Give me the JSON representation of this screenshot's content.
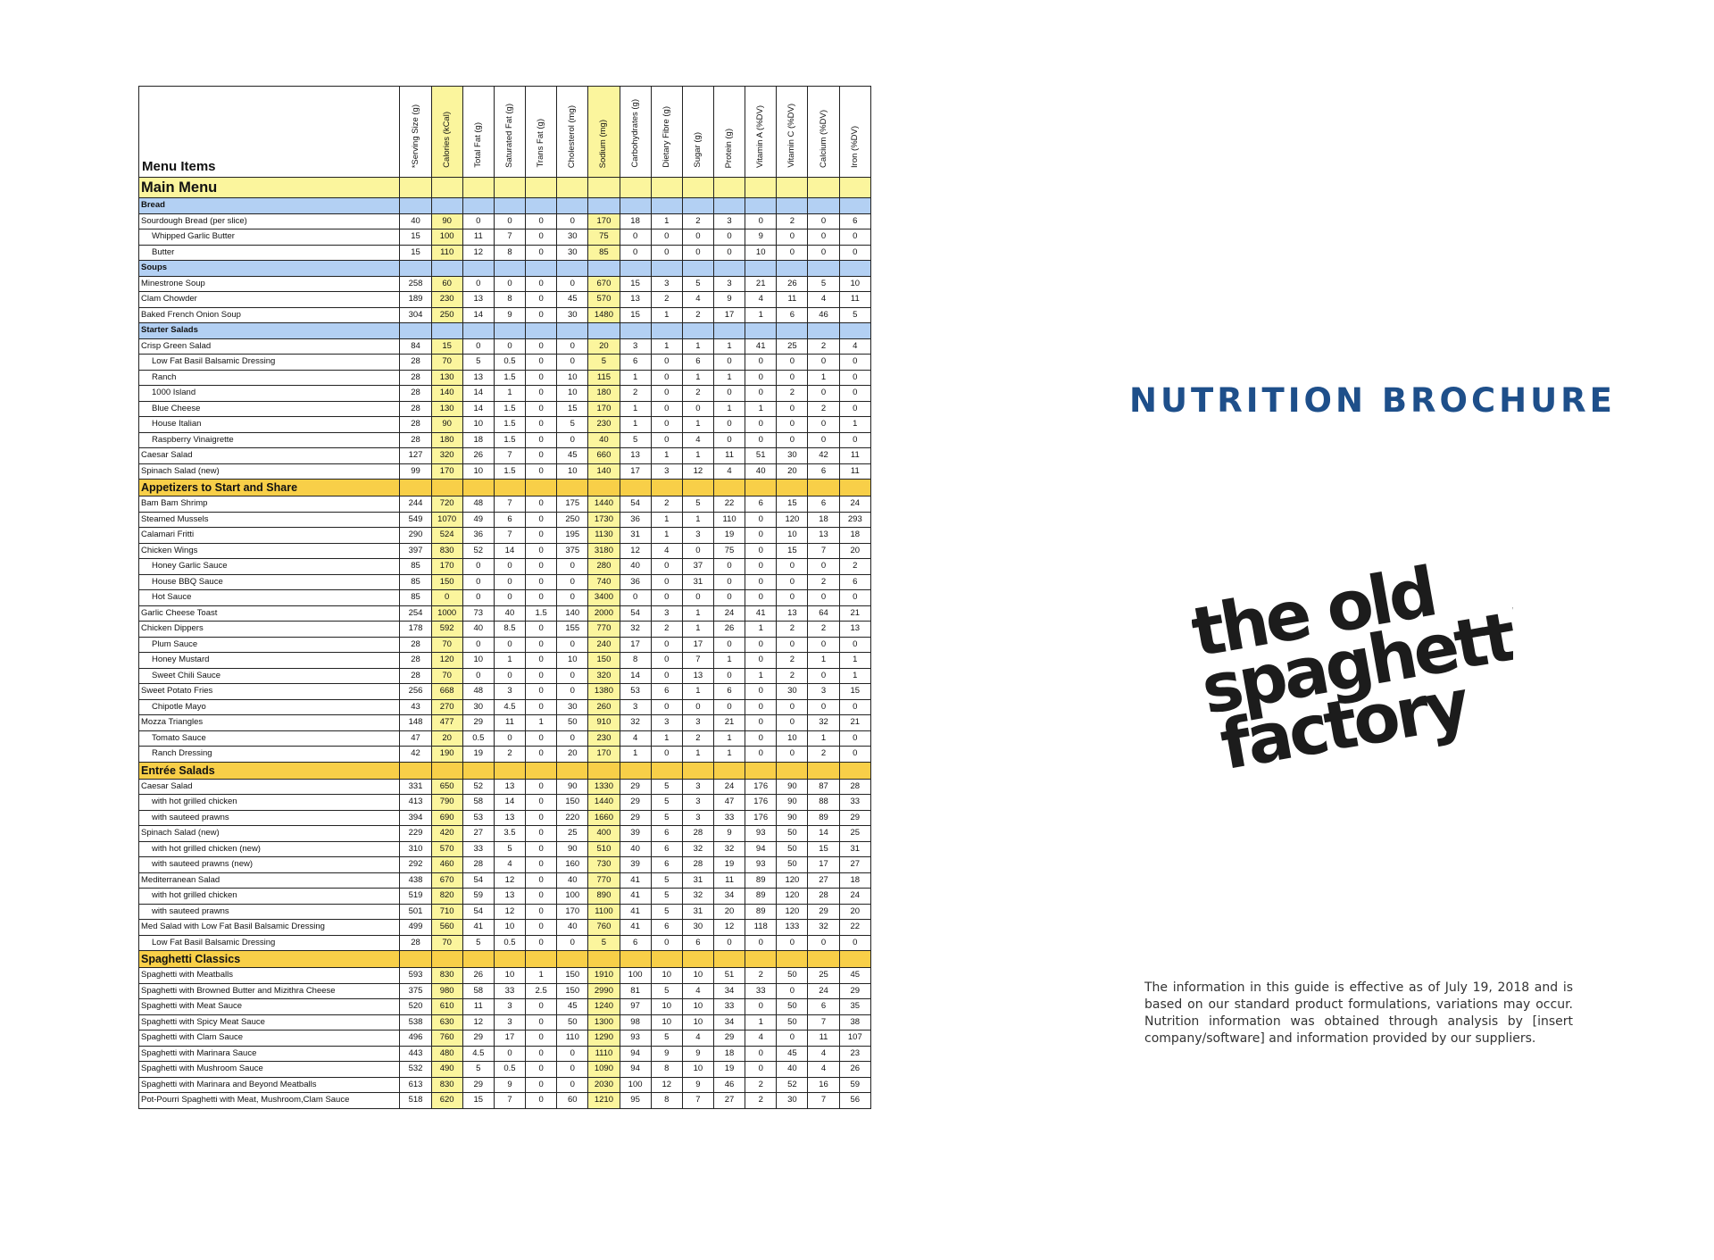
{
  "table": {
    "menu_items_header": "Menu Items",
    "columns": [
      "*Serving Size (g)",
      "Calories (kCal)",
      "Total Fat (g)",
      "Saturated Fat (g)",
      "Trans Fat (g)",
      "Cholesterol (mg)",
      "Sodium (mg)",
      "Carbohydrates (g)",
      "Dietary Fibre (g)",
      "Sugar (g)",
      "Protein (g)",
      "Vitamin A (%DV)",
      "Vitamin C (%DV)",
      "Calcium (%DV)",
      "Iron (%DV)"
    ],
    "highlight_columns": [
      1,
      6
    ],
    "rows": [
      {
        "kind": "main",
        "name": "Main Menu"
      },
      {
        "kind": "section",
        "name": "Bread"
      },
      {
        "name": "Sourdough Bread (per slice)",
        "v": [
          "40",
          "90",
          "0",
          "0",
          "0",
          "0",
          "170",
          "18",
          "1",
          "2",
          "3",
          "0",
          "2",
          "0",
          "6"
        ]
      },
      {
        "name": "Whipped Garlic Butter",
        "sub": true,
        "v": [
          "15",
          "100",
          "11",
          "7",
          "0",
          "30",
          "75",
          "0",
          "0",
          "0",
          "0",
          "9",
          "0",
          "0",
          "0"
        ]
      },
      {
        "name": "Butter",
        "sub": true,
        "v": [
          "15",
          "110",
          "12",
          "8",
          "0",
          "30",
          "85",
          "0",
          "0",
          "0",
          "0",
          "10",
          "0",
          "0",
          "0"
        ]
      },
      {
        "kind": "section",
        "name": "Soups"
      },
      {
        "name": "Minestrone Soup",
        "v": [
          "258",
          "60",
          "0",
          "0",
          "0",
          "0",
          "670",
          "15",
          "3",
          "5",
          "3",
          "21",
          "26",
          "5",
          "10"
        ]
      },
      {
        "name": "Clam Chowder",
        "v": [
          "189",
          "230",
          "13",
          "8",
          "0",
          "45",
          "570",
          "13",
          "2",
          "4",
          "9",
          "4",
          "11",
          "4",
          "11"
        ]
      },
      {
        "name": "Baked French Onion Soup",
        "v": [
          "304",
          "250",
          "14",
          "9",
          "0",
          "30",
          "1480",
          "15",
          "1",
          "2",
          "17",
          "1",
          "6",
          "46",
          "5"
        ]
      },
      {
        "kind": "section",
        "name": "Starter Salads"
      },
      {
        "name": "Crisp Green Salad",
        "v": [
          "84",
          "15",
          "0",
          "0",
          "0",
          "0",
          "20",
          "3",
          "1",
          "1",
          "1",
          "41",
          "25",
          "2",
          "4"
        ]
      },
      {
        "name": "Low Fat Basil Balsamic Dressing",
        "sub": true,
        "v": [
          "28",
          "70",
          "5",
          "0.5",
          "0",
          "0",
          "5",
          "6",
          "0",
          "6",
          "0",
          "0",
          "0",
          "0",
          "0"
        ]
      },
      {
        "name": "Ranch",
        "sub": true,
        "v": [
          "28",
          "130",
          "13",
          "1.5",
          "0",
          "10",
          "115",
          "1",
          "0",
          "1",
          "1",
          "0",
          "0",
          "1",
          "0"
        ]
      },
      {
        "name": "1000 Island",
        "sub": true,
        "v": [
          "28",
          "140",
          "14",
          "1",
          "0",
          "10",
          "180",
          "2",
          "0",
          "2",
          "0",
          "0",
          "2",
          "0",
          "0"
        ]
      },
      {
        "name": "Blue Cheese",
        "sub": true,
        "v": [
          "28",
          "130",
          "14",
          "1.5",
          "0",
          "15",
          "170",
          "1",
          "0",
          "0",
          "1",
          "1",
          "0",
          "2",
          "0"
        ]
      },
      {
        "name": "House Italian",
        "sub": true,
        "v": [
          "28",
          "90",
          "10",
          "1.5",
          "0",
          "5",
          "230",
          "1",
          "0",
          "1",
          "0",
          "0",
          "0",
          "0",
          "1"
        ]
      },
      {
        "name": "Raspberry Vinaigrette",
        "sub": true,
        "v": [
          "28",
          "180",
          "18",
          "1.5",
          "0",
          "0",
          "40",
          "5",
          "0",
          "4",
          "0",
          "0",
          "0",
          "0",
          "0"
        ]
      },
      {
        "name": "Caesar Salad",
        "v": [
          "127",
          "320",
          "26",
          "7",
          "0",
          "45",
          "660",
          "13",
          "1",
          "1",
          "11",
          "51",
          "30",
          "42",
          "11"
        ]
      },
      {
        "name": "Spinach Salad (new)",
        "v": [
          "99",
          "170",
          "10",
          "1.5",
          "0",
          "10",
          "140",
          "17",
          "3",
          "12",
          "4",
          "40",
          "20",
          "6",
          "11"
        ]
      },
      {
        "kind": "big",
        "name": "Appetizers to Start and Share"
      },
      {
        "name": "Bam Bam Shrimp",
        "v": [
          "244",
          "720",
          "48",
          "7",
          "0",
          "175",
          "1440",
          "54",
          "2",
          "5",
          "22",
          "6",
          "15",
          "6",
          "24"
        ]
      },
      {
        "name": "Steamed Mussels",
        "v": [
          "549",
          "1070",
          "49",
          "6",
          "0",
          "250",
          "1730",
          "36",
          "1",
          "1",
          "110",
          "0",
          "120",
          "18",
          "293"
        ]
      },
      {
        "name": "Calamari Fritti",
        "v": [
          "290",
          "524",
          "36",
          "7",
          "0",
          "195",
          "1130",
          "31",
          "1",
          "3",
          "19",
          "0",
          "10",
          "13",
          "18"
        ]
      },
      {
        "name": "Chicken Wings",
        "v": [
          "397",
          "830",
          "52",
          "14",
          "0",
          "375",
          "3180",
          "12",
          "4",
          "0",
          "75",
          "0",
          "15",
          "7",
          "20"
        ]
      },
      {
        "name": "Honey Garlic Sauce",
        "sub": true,
        "v": [
          "85",
          "170",
          "0",
          "0",
          "0",
          "0",
          "280",
          "40",
          "0",
          "37",
          "0",
          "0",
          "0",
          "0",
          "2"
        ]
      },
      {
        "name": "House BBQ Sauce",
        "sub": true,
        "v": [
          "85",
          "150",
          "0",
          "0",
          "0",
          "0",
          "740",
          "36",
          "0",
          "31",
          "0",
          "0",
          "0",
          "2",
          "6"
        ]
      },
      {
        "name": "Hot Sauce",
        "sub": true,
        "v": [
          "85",
          "0",
          "0",
          "0",
          "0",
          "0",
          "3400",
          "0",
          "0",
          "0",
          "0",
          "0",
          "0",
          "0",
          "0"
        ]
      },
      {
        "name": "Garlic Cheese Toast",
        "v": [
          "254",
          "1000",
          "73",
          "40",
          "1.5",
          "140",
          "2000",
          "54",
          "3",
          "1",
          "24",
          "41",
          "13",
          "64",
          "21"
        ]
      },
      {
        "name": "Chicken Dippers",
        "v": [
          "178",
          "592",
          "40",
          "8.5",
          "0",
          "155",
          "770",
          "32",
          "2",
          "1",
          "26",
          "1",
          "2",
          "2",
          "13"
        ]
      },
      {
        "name": "Plum Sauce",
        "sub": true,
        "v": [
          "28",
          "70",
          "0",
          "0",
          "0",
          "0",
          "240",
          "17",
          "0",
          "17",
          "0",
          "0",
          "0",
          "0",
          "0"
        ]
      },
      {
        "name": "Honey Mustard",
        "sub": true,
        "v": [
          "28",
          "120",
          "10",
          "1",
          "0",
          "10",
          "150",
          "8",
          "0",
          "7",
          "1",
          "0",
          "2",
          "1",
          "1"
        ]
      },
      {
        "name": "Sweet Chili Sauce",
        "sub": true,
        "v": [
          "28",
          "70",
          "0",
          "0",
          "0",
          "0",
          "320",
          "14",
          "0",
          "13",
          "0",
          "1",
          "2",
          "0",
          "1"
        ]
      },
      {
        "name": "Sweet Potato Fries",
        "v": [
          "256",
          "668",
          "48",
          "3",
          "0",
          "0",
          "1380",
          "53",
          "6",
          "1",
          "6",
          "0",
          "30",
          "3",
          "15"
        ]
      },
      {
        "name": "Chipotle Mayo",
        "sub": true,
        "v": [
          "43",
          "270",
          "30",
          "4.5",
          "0",
          "30",
          "260",
          "3",
          "0",
          "0",
          "0",
          "0",
          "0",
          "0",
          "0"
        ]
      },
      {
        "name": "Mozza Triangles",
        "v": [
          "148",
          "477",
          "29",
          "11",
          "1",
          "50",
          "910",
          "32",
          "3",
          "3",
          "21",
          "0",
          "0",
          "32",
          "21"
        ]
      },
      {
        "name": "Tomato Sauce",
        "sub": true,
        "v": [
          "47",
          "20",
          "0.5",
          "0",
          "0",
          "0",
          "230",
          "4",
          "1",
          "2",
          "1",
          "0",
          "10",
          "1",
          "0"
        ]
      },
      {
        "name": "Ranch Dressing",
        "sub": true,
        "v": [
          "42",
          "190",
          "19",
          "2",
          "0",
          "20",
          "170",
          "1",
          "0",
          "1",
          "1",
          "0",
          "0",
          "2",
          "0"
        ]
      },
      {
        "kind": "big",
        "name": "Entrée Salads"
      },
      {
        "name": "Caesar Salad",
        "v": [
          "331",
          "650",
          "52",
          "13",
          "0",
          "90",
          "1330",
          "29",
          "5",
          "3",
          "24",
          "176",
          "90",
          "87",
          "28"
        ]
      },
      {
        "name": "with hot grilled chicken",
        "sub": true,
        "v": [
          "413",
          "790",
          "58",
          "14",
          "0",
          "150",
          "1440",
          "29",
          "5",
          "3",
          "47",
          "176",
          "90",
          "88",
          "33"
        ]
      },
      {
        "name": "with sauteed prawns",
        "sub": true,
        "v": [
          "394",
          "690",
          "53",
          "13",
          "0",
          "220",
          "1660",
          "29",
          "5",
          "3",
          "33",
          "176",
          "90",
          "89",
          "29"
        ]
      },
      {
        "name": "Spinach Salad (new)",
        "v": [
          "229",
          "420",
          "27",
          "3.5",
          "0",
          "25",
          "400",
          "39",
          "6",
          "28",
          "9",
          "93",
          "50",
          "14",
          "25"
        ]
      },
      {
        "name": "with hot grilled chicken (new)",
        "sub": true,
        "v": [
          "310",
          "570",
          "33",
          "5",
          "0",
          "90",
          "510",
          "40",
          "6",
          "32",
          "32",
          "94",
          "50",
          "15",
          "31"
        ]
      },
      {
        "name": "with sauteed prawns (new)",
        "sub": true,
        "v": [
          "292",
          "460",
          "28",
          "4",
          "0",
          "160",
          "730",
          "39",
          "6",
          "28",
          "19",
          "93",
          "50",
          "17",
          "27"
        ]
      },
      {
        "name": "Mediterranean Salad",
        "v": [
          "438",
          "670",
          "54",
          "12",
          "0",
          "40",
          "770",
          "41",
          "5",
          "31",
          "11",
          "89",
          "120",
          "27",
          "18"
        ]
      },
      {
        "name": "with hot grilled chicken",
        "sub": true,
        "v": [
          "519",
          "820",
          "59",
          "13",
          "0",
          "100",
          "890",
          "41",
          "5",
          "32",
          "34",
          "89",
          "120",
          "28",
          "24"
        ]
      },
      {
        "name": "with sauteed prawns",
        "sub": true,
        "v": [
          "501",
          "710",
          "54",
          "12",
          "0",
          "170",
          "1100",
          "41",
          "5",
          "31",
          "20",
          "89",
          "120",
          "29",
          "20"
        ]
      },
      {
        "name": "Med Salad with Low Fat Basil Balsamic Dressing",
        "v": [
          "499",
          "560",
          "41",
          "10",
          "0",
          "40",
          "760",
          "41",
          "6",
          "30",
          "12",
          "118",
          "133",
          "32",
          "22"
        ]
      },
      {
        "name": "Low Fat Basil Balsamic Dressing",
        "sub": true,
        "v": [
          "28",
          "70",
          "5",
          "0.5",
          "0",
          "0",
          "5",
          "6",
          "0",
          "6",
          "0",
          "0",
          "0",
          "0",
          "0"
        ]
      },
      {
        "kind": "big",
        "name": "Spaghetti Classics"
      },
      {
        "name": "Spaghetti with Meatballs",
        "v": [
          "593",
          "830",
          "26",
          "10",
          "1",
          "150",
          "1910",
          "100",
          "10",
          "10",
          "51",
          "2",
          "50",
          "25",
          "45"
        ]
      },
      {
        "name": "Spaghetti with Browned Butter and Mizithra Cheese",
        "v": [
          "375",
          "980",
          "58",
          "33",
          "2.5",
          "150",
          "2990",
          "81",
          "5",
          "4",
          "34",
          "33",
          "0",
          "24",
          "29"
        ]
      },
      {
        "name": "Spaghetti with Meat Sauce",
        "v": [
          "520",
          "610",
          "11",
          "3",
          "0",
          "45",
          "1240",
          "97",
          "10",
          "10",
          "33",
          "0",
          "50",
          "6",
          "35"
        ]
      },
      {
        "name": "Spaghetti with Spicy Meat Sauce",
        "v": [
          "538",
          "630",
          "12",
          "3",
          "0",
          "50",
          "1300",
          "98",
          "10",
          "10",
          "34",
          "1",
          "50",
          "7",
          "38"
        ]
      },
      {
        "name": "Spaghetti with Clam Sauce",
        "v": [
          "496",
          "760",
          "29",
          "17",
          "0",
          "110",
          "1290",
          "93",
          "5",
          "4",
          "29",
          "4",
          "0",
          "11",
          "107"
        ]
      },
      {
        "name": "Spaghetti with Marinara Sauce",
        "v": [
          "443",
          "480",
          "4.5",
          "0",
          "0",
          "0",
          "1110",
          "94",
          "9",
          "9",
          "18",
          "0",
          "45",
          "4",
          "23"
        ]
      },
      {
        "name": "Spaghetti with Mushroom Sauce",
        "v": [
          "532",
          "490",
          "5",
          "0.5",
          "0",
          "0",
          "1090",
          "94",
          "8",
          "10",
          "19",
          "0",
          "40",
          "4",
          "26"
        ]
      },
      {
        "name": "Spaghetti with Marinara and Beyond Meatballs",
        "v": [
          "613",
          "830",
          "29",
          "9",
          "0",
          "0",
          "2030",
          "100",
          "12",
          "9",
          "46",
          "2",
          "52",
          "16",
          "59"
        ]
      },
      {
        "name": "Pot-Pourri Spaghetti with Meat, Mushroom,Clam Sauce",
        "v": [
          "518",
          "620",
          "15",
          "7",
          "0",
          "60",
          "1210",
          "95",
          "8",
          "7",
          "27",
          "2",
          "30",
          "7",
          "56"
        ]
      }
    ]
  },
  "brochure_title": "NUTRITION BROCHURE",
  "logo": {
    "lines": [
      "the old",
      "spaghetti",
      "factory"
    ],
    "color": "#1c1c1c"
  },
  "disclaimer": "The information in this guide is effective as of July 19, 2018 and is based on our standard product formulations, variations may occur. Nutrition information was obtained through analysis by [insert company/software] and information provided by our suppliers.",
  "colors": {
    "title_blue": "#1e4f8a",
    "highlight_yellow": "#fbf59d",
    "section_blue": "#b3d0f3",
    "category_gold": "#f8cf48"
  }
}
